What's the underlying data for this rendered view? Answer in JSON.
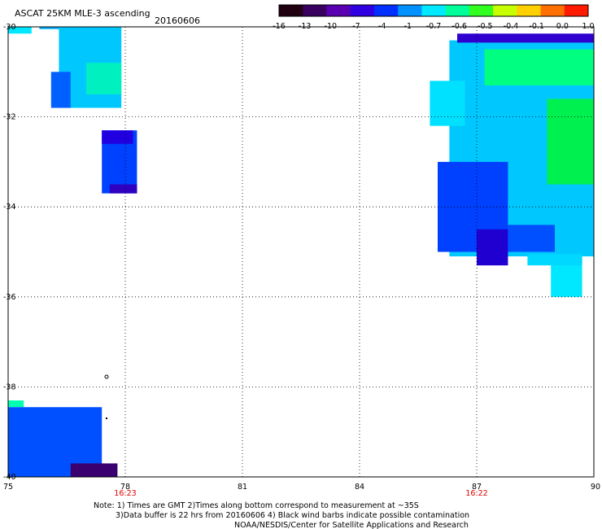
{
  "header": {
    "title": "ASCAT 25KM MLE-3 ascending",
    "date": "20160606"
  },
  "colorbar": {
    "labels": [
      "-16",
      "-13",
      "-10",
      "-7",
      "-4",
      "-1",
      "-0.7",
      "-0.6",
      "-0.5",
      "-0.4",
      "-0.1",
      "0.0",
      "1.0"
    ],
    "colors": [
      "#200010",
      "#3a0060",
      "#5a00b0",
      "#3000e0",
      "#0030ff",
      "#0090ff",
      "#00e8ff",
      "#00ff9a",
      "#30ff20",
      "#c8ff00",
      "#ffd000",
      "#ff7000",
      "#ff1a00"
    ]
  },
  "map": {
    "lat_labels": [
      "-30",
      "-32",
      "-34",
      "-36",
      "-38",
      "-40"
    ],
    "lon_labels": [
      "75",
      "78",
      "81",
      "84",
      "87",
      "90"
    ],
    "lat_range": [
      -40,
      -30
    ],
    "lon_range": [
      75,
      90
    ],
    "times": [
      {
        "lon": 78,
        "label": "16:23"
      },
      {
        "lon": 87,
        "label": "16:22"
      }
    ],
    "time_color": "#e00000"
  },
  "footer": {
    "note_line1": "Note: 1) Times are GMT 2)Times along bottom correspond to measurement at ~35S",
    "note_line2": "3)Data buffer is 22 hrs from 20160606 4) Black wind barbs indicate possible contamination",
    "credit": "NOAA/NESDIS/Center for Satellite Applications and Research"
  },
  "swaths": [
    {
      "name": "swath-nw-strip",
      "color": "#00e8ff",
      "lon": [
        75,
        75.6
      ],
      "lat": [
        -30.15,
        -30
      ]
    },
    {
      "name": "swath-nw-strip2",
      "color": "#00b0ff",
      "lon": [
        75.8,
        77
      ],
      "lat": [
        -30.05,
        -30
      ]
    },
    {
      "name": "swath-nw-block",
      "color": "#00c8ff",
      "lon": [
        76.3,
        77.9
      ],
      "lat": [
        -31.8,
        -30
      ]
    },
    {
      "name": "swath-nw-left",
      "color": "#0060ff",
      "lon": [
        76.1,
        76.6
      ],
      "lat": [
        -31.8,
        -31
      ]
    },
    {
      "name": "swath-nw-green",
      "color": "#00f0c0",
      "lon": [
        77.0,
        77.9
      ],
      "lat": [
        -31.5,
        -30.8
      ]
    },
    {
      "name": "swath-mid-block",
      "color": "#0040ff",
      "lon": [
        77.4,
        78.3
      ],
      "lat": [
        -33.7,
        -32.3
      ]
    },
    {
      "name": "swath-mid-top",
      "color": "#2000e0",
      "lon": [
        77.4,
        78.2
      ],
      "lat": [
        -32.6,
        -32.3
      ]
    },
    {
      "name": "swath-mid-bottom",
      "color": "#3000c0",
      "lon": [
        77.6,
        78.3
      ],
      "lat": [
        -33.7,
        -33.5
      ]
    },
    {
      "name": "swath-east-main",
      "color": "#00c8ff",
      "lon": [
        86.3,
        90
      ],
      "lat": [
        -35.1,
        -30.3
      ]
    },
    {
      "name": "swath-east-top",
      "color": "#3000d0",
      "lon": [
        86.5,
        90
      ],
      "lat": [
        -30.35,
        -30.15
      ]
    },
    {
      "name": "swath-east-green",
      "color": "#00ff80",
      "lon": [
        87.2,
        90
      ],
      "lat": [
        -31.3,
        -30.5
      ]
    },
    {
      "name": "swath-east-green2",
      "color": "#00f050",
      "lon": [
        88.8,
        90
      ],
      "lat": [
        -33.5,
        -31.6
      ]
    },
    {
      "name": "swath-east-westpatch",
      "color": "#00e0ff",
      "lon": [
        85.8,
        86.7
      ],
      "lat": [
        -32.2,
        -31.2
      ]
    },
    {
      "name": "swath-east-blue",
      "color": "#0040ff",
      "lon": [
        86.0,
        87.8
      ],
      "lat": [
        -35.0,
        -33.0
      ]
    },
    {
      "name": "swath-east-purple",
      "color": "#2000d0",
      "lon": [
        87.0,
        87.8
      ],
      "lat": [
        -35.3,
        -34.5
      ]
    },
    {
      "name": "swath-east-tail",
      "color": "#00e8ff",
      "lon": [
        88.9,
        89.7
      ],
      "lat": [
        -36.0,
        -35.2
      ]
    },
    {
      "name": "swath-east-tail2",
      "color": "#00d8ff",
      "lon": [
        88.3,
        89.7
      ],
      "lat": [
        -35.3,
        -35.05
      ]
    },
    {
      "name": "swath-east-blue2",
      "color": "#0050ff",
      "lon": [
        87.8,
        89.0
      ],
      "lat": [
        -35.0,
        -34.4
      ]
    },
    {
      "name": "swath-sw-cyan",
      "color": "#00ffb0",
      "lon": [
        75,
        75.4
      ],
      "lat": [
        -38.45,
        -38.3
      ]
    },
    {
      "name": "swath-sw-tri",
      "color": "#0050ff",
      "lon": [
        75,
        77.4
      ],
      "lat": [
        -40,
        -38.45
      ]
    },
    {
      "name": "swath-sw-dark",
      "color": "#3a0070",
      "lon": [
        76.6,
        77.8
      ],
      "lat": [
        -40,
        -39.7
      ]
    }
  ]
}
